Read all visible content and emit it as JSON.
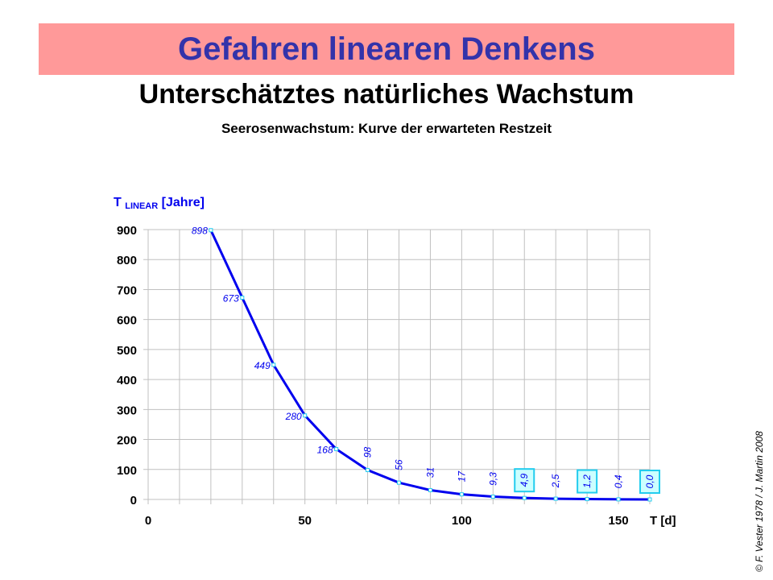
{
  "title": "Gefahren linearen Denkens",
  "subtitle": "Unterschätztes natürliches Wachstum",
  "chart_title": "Seerosenwachstum:  Kurve der erwarteten Restzeit",
  "credit": "© F. Vester 1978  /  J. Martin 2008",
  "colors": {
    "banner": "#ff9999",
    "title": "#3333aa",
    "line": "#0000ee",
    "marker": "#22ccee",
    "box_fill": "#ccffff"
  },
  "chart_data": {
    "type": "line",
    "title": "Seerosenwachstum:  Kurve der erwarteten Restzeit",
    "xlabel": "T [d]",
    "ylabel_main": "T",
    "ylabel_sub": "LINEAR",
    "ylabel_unit": "[Jahre]",
    "xlim": [
      0,
      160
    ],
    "ylim": [
      0,
      900
    ],
    "xticks": [
      0,
      50,
      100,
      150
    ],
    "yticks": [
      0,
      100,
      200,
      300,
      400,
      500,
      600,
      700,
      800,
      900
    ],
    "grid": true,
    "x": [
      20,
      30,
      40,
      50,
      60,
      70,
      80,
      90,
      100,
      110,
      120,
      130,
      140,
      150,
      160
    ],
    "values": [
      898,
      673,
      449,
      280,
      168,
      98,
      56,
      31,
      17,
      9.3,
      4.9,
      2.5,
      1.2,
      0.4,
      0.0
    ],
    "labels": [
      "898",
      "673",
      "449",
      "280",
      "168",
      "98",
      "56",
      "31",
      "17",
      "9,3",
      "4,9",
      "2,5",
      "1,2",
      "0,4",
      "0,0"
    ],
    "boxed_labels": [
      "4,9",
      "1,2",
      "0,0"
    ]
  }
}
